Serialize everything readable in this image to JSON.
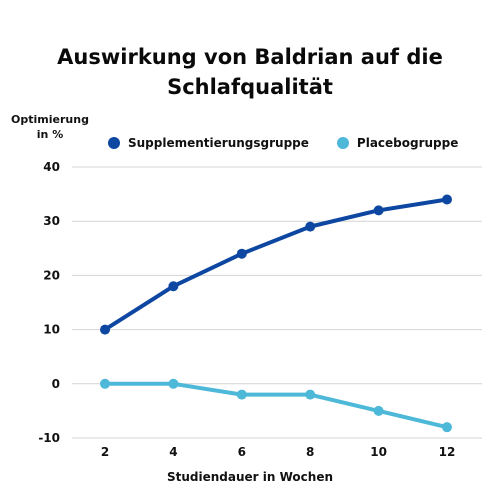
{
  "chart_data": {
    "type": "line",
    "title_lines": [
      "Auswirkung von Baldrian auf die",
      "Schlafqualität"
    ],
    "ylabel_lines": [
      "Optimierung",
      "in %"
    ],
    "xlabel": "Studiendauer in Wochen",
    "x": [
      2,
      4,
      6,
      8,
      10,
      12
    ],
    "x_tick_labels": [
      "2",
      "4",
      "6",
      "8",
      "10",
      "12"
    ],
    "y_tick_values": [
      -10,
      0,
      10,
      20,
      30,
      40
    ],
    "y_tick_labels": [
      "-10",
      "0",
      "10",
      "20",
      "30",
      "40"
    ],
    "ylim": [
      -10,
      40
    ],
    "grid": true,
    "legend_position": "top",
    "series": [
      {
        "name": "Supplementierungsgruppe",
        "color": "#0d47a1",
        "values": [
          10,
          18,
          24,
          29,
          32,
          34
        ]
      },
      {
        "name": "Placebogruppe",
        "color": "#4db8d8",
        "values": [
          0,
          0,
          -2,
          -2,
          -5,
          -8
        ]
      }
    ]
  }
}
